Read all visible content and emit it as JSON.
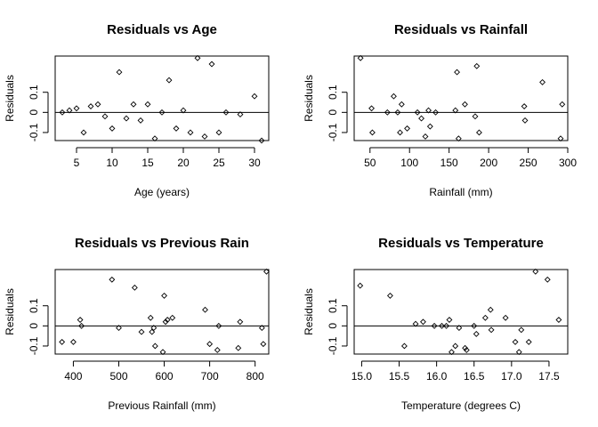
{
  "chart_data": [
    {
      "type": "scatter",
      "title": "Residuals vs Age",
      "xlabel": "Age (years)",
      "ylabel": "Residuals",
      "xlim": [
        2,
        32
      ],
      "ylim": [
        -0.14,
        0.28
      ],
      "xticks": [
        5,
        10,
        15,
        20,
        25,
        30
      ],
      "yticks": [
        -0.1,
        0.0,
        0.1
      ],
      "ytick_labels": [
        "-0.1",
        "0",
        "0.1"
      ],
      "hline": 0,
      "points": [
        {
          "x": 3,
          "y": 0.0
        },
        {
          "x": 4,
          "y": 0.01
        },
        {
          "x": 5,
          "y": 0.02
        },
        {
          "x": 6,
          "y": -0.1
        },
        {
          "x": 7,
          "y": 0.03
        },
        {
          "x": 8,
          "y": 0.04
        },
        {
          "x": 9,
          "y": -0.02
        },
        {
          "x": 10,
          "y": -0.08
        },
        {
          "x": 11,
          "y": 0.2
        },
        {
          "x": 12,
          "y": -0.03
        },
        {
          "x": 13,
          "y": 0.04
        },
        {
          "x": 14,
          "y": -0.04
        },
        {
          "x": 15,
          "y": 0.04
        },
        {
          "x": 16,
          "y": -0.13
        },
        {
          "x": 17,
          "y": 0.0
        },
        {
          "x": 18,
          "y": 0.16
        },
        {
          "x": 19,
          "y": -0.08
        },
        {
          "x": 20,
          "y": 0.01
        },
        {
          "x": 21,
          "y": -0.1
        },
        {
          "x": 22,
          "y": 0.27
        },
        {
          "x": 23,
          "y": -0.12
        },
        {
          "x": 24,
          "y": 0.24
        },
        {
          "x": 25,
          "y": -0.1
        },
        {
          "x": 26,
          "y": 0.0
        },
        {
          "x": 28,
          "y": -0.01
        },
        {
          "x": 30,
          "y": 0.08
        },
        {
          "x": 31,
          "y": -0.14
        }
      ]
    },
    {
      "type": "scatter",
      "title": "Residuals vs Rainfall",
      "xlabel": "Rainfall (mm)",
      "ylabel": "Residuals",
      "xlim": [
        30,
        300
      ],
      "ylim": [
        -0.14,
        0.28
      ],
      "xticks": [
        50,
        100,
        150,
        200,
        250,
        300
      ],
      "yticks": [
        -0.1,
        0.0,
        0.1
      ],
      "ytick_labels": [
        "-0.1",
        "0",
        "0.1"
      ],
      "hline": 0,
      "points": [
        {
          "x": 38,
          "y": 0.27
        },
        {
          "x": 52,
          "y": 0.02
        },
        {
          "x": 53,
          "y": -0.1
        },
        {
          "x": 72,
          "y": 0.0
        },
        {
          "x": 80,
          "y": 0.08
        },
        {
          "x": 85,
          "y": 0.0
        },
        {
          "x": 88,
          "y": -0.1
        },
        {
          "x": 90,
          "y": 0.04
        },
        {
          "x": 97,
          "y": -0.08
        },
        {
          "x": 110,
          "y": 0.0
        },
        {
          "x": 115,
          "y": -0.03
        },
        {
          "x": 120,
          "y": -0.12
        },
        {
          "x": 124,
          "y": 0.01
        },
        {
          "x": 126,
          "y": -0.07
        },
        {
          "x": 133,
          "y": 0.0
        },
        {
          "x": 158,
          "y": 0.01
        },
        {
          "x": 160,
          "y": 0.2
        },
        {
          "x": 162,
          "y": -0.13
        },
        {
          "x": 170,
          "y": 0.04
        },
        {
          "x": 183,
          "y": -0.02
        },
        {
          "x": 185,
          "y": 0.23
        },
        {
          "x": 188,
          "y": -0.1
        },
        {
          "x": 245,
          "y": 0.03
        },
        {
          "x": 246,
          "y": -0.04
        },
        {
          "x": 268,
          "y": 0.15
        },
        {
          "x": 291,
          "y": -0.13
        },
        {
          "x": 293,
          "y": 0.04
        }
      ]
    },
    {
      "type": "scatter",
      "title": "Residuals vs Previous Rain",
      "xlabel": "Previous Rainfall (mm)",
      "ylabel": "Residuals",
      "xlim": [
        360,
        830
      ],
      "ylim": [
        -0.14,
        0.28
      ],
      "xticks": [
        400,
        500,
        600,
        700,
        800
      ],
      "yticks": [
        -0.1,
        0.0,
        0.1
      ],
      "ytick_labels": [
        "-0.1",
        "0",
        "0.1"
      ],
      "hline": 0,
      "points": [
        {
          "x": 375,
          "y": -0.08
        },
        {
          "x": 400,
          "y": -0.08
        },
        {
          "x": 415,
          "y": 0.03
        },
        {
          "x": 418,
          "y": 0.0
        },
        {
          "x": 485,
          "y": 0.23
        },
        {
          "x": 500,
          "y": -0.01
        },
        {
          "x": 535,
          "y": 0.19
        },
        {
          "x": 550,
          "y": -0.03
        },
        {
          "x": 570,
          "y": 0.04
        },
        {
          "x": 573,
          "y": -0.03
        },
        {
          "x": 577,
          "y": -0.01
        },
        {
          "x": 580,
          "y": -0.1
        },
        {
          "x": 597,
          "y": -0.13
        },
        {
          "x": 600,
          "y": 0.15
        },
        {
          "x": 603,
          "y": 0.02
        },
        {
          "x": 607,
          "y": 0.03
        },
        {
          "x": 618,
          "y": 0.04
        },
        {
          "x": 690,
          "y": 0.08
        },
        {
          "x": 700,
          "y": -0.09
        },
        {
          "x": 717,
          "y": -0.12
        },
        {
          "x": 720,
          "y": 0.0
        },
        {
          "x": 763,
          "y": -0.11
        },
        {
          "x": 767,
          "y": 0.02
        },
        {
          "x": 815,
          "y": -0.01
        },
        {
          "x": 818,
          "y": -0.09
        },
        {
          "x": 825,
          "y": 0.27
        }
      ]
    },
    {
      "type": "scatter",
      "title": "Residuals vs Temperature",
      "xlabel": "Temperature (degrees C)",
      "ylabel": "Residuals",
      "xlim": [
        14.9,
        17.75
      ],
      "ylim": [
        -0.14,
        0.28
      ],
      "xticks": [
        15.0,
        15.5,
        16.0,
        16.5,
        17.0,
        17.5
      ],
      "xtick_labels": [
        "15.0",
        "15.5",
        "16.0",
        "16.5",
        "17.0",
        "17.5"
      ],
      "yticks": [
        -0.1,
        0.0,
        0.1
      ],
      "ytick_labels": [
        "-0.1",
        "0",
        "0.1"
      ],
      "hline": 0,
      "points": [
        {
          "x": 14.98,
          "y": 0.2
        },
        {
          "x": 15.38,
          "y": 0.15
        },
        {
          "x": 15.57,
          "y": -0.1
        },
        {
          "x": 15.72,
          "y": 0.01
        },
        {
          "x": 15.82,
          "y": 0.02
        },
        {
          "x": 15.97,
          "y": 0.0
        },
        {
          "x": 16.07,
          "y": 0.0
        },
        {
          "x": 16.13,
          "y": 0.0
        },
        {
          "x": 16.17,
          "y": 0.03
        },
        {
          "x": 16.2,
          "y": -0.13
        },
        {
          "x": 16.25,
          "y": -0.1
        },
        {
          "x": 16.3,
          "y": -0.01
        },
        {
          "x": 16.38,
          "y": -0.11
        },
        {
          "x": 16.4,
          "y": -0.12
        },
        {
          "x": 16.5,
          "y": 0.0
        },
        {
          "x": 16.53,
          "y": -0.04
        },
        {
          "x": 16.65,
          "y": 0.04
        },
        {
          "x": 16.72,
          "y": 0.08
        },
        {
          "x": 16.73,
          "y": -0.02
        },
        {
          "x": 16.92,
          "y": 0.04
        },
        {
          "x": 17.05,
          "y": -0.08
        },
        {
          "x": 17.1,
          "y": -0.13
        },
        {
          "x": 17.13,
          "y": -0.02
        },
        {
          "x": 17.23,
          "y": -0.08
        },
        {
          "x": 17.32,
          "y": 0.27
        },
        {
          "x": 17.48,
          "y": 0.23
        },
        {
          "x": 17.63,
          "y": 0.03
        }
      ]
    }
  ]
}
